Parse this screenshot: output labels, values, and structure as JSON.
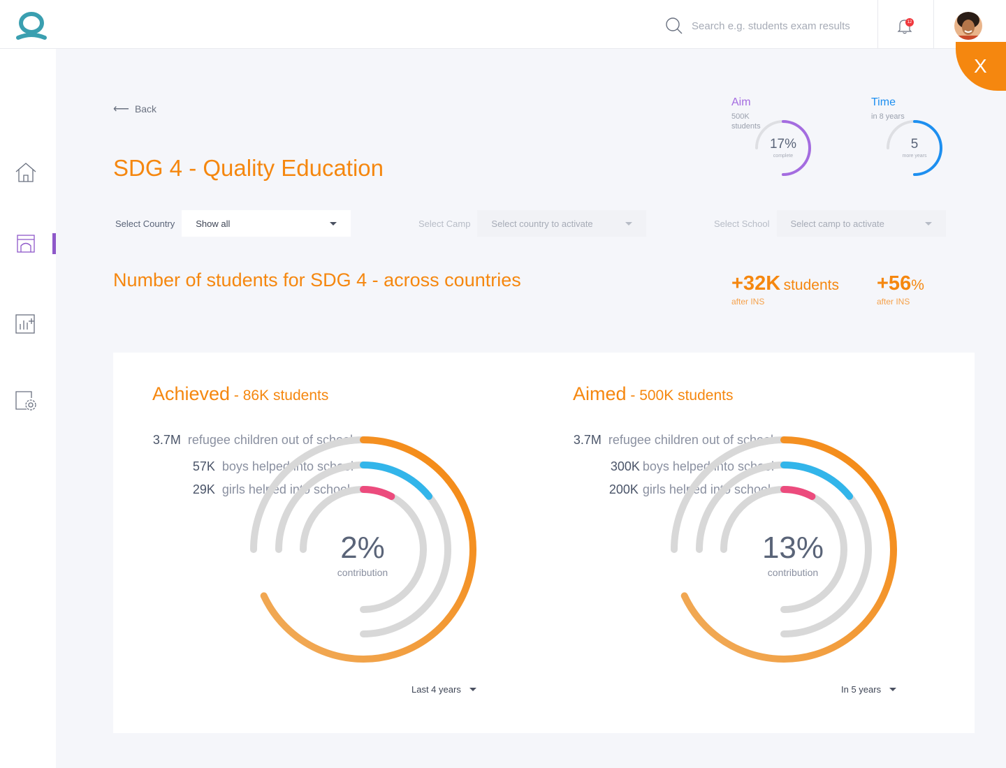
{
  "header": {
    "search_placeholder": "Search e.g. students exam results",
    "notification_count": "12"
  },
  "nav": {
    "back_label": "Back",
    "close_label": "X"
  },
  "page": {
    "title": "SDG 4 - Quality Education"
  },
  "aim": {
    "title": "Aim",
    "sub1": "500K",
    "sub2": "students",
    "value": "17%",
    "label": "complete",
    "fraction": 0.17
  },
  "time": {
    "title": "Time",
    "sub1": "in 8 years",
    "value": "5",
    "label": "more years",
    "fraction": 0.375
  },
  "filters": {
    "country_label": "Select Country",
    "country_value": "Show all",
    "camp_label": "Select  Camp",
    "camp_value": "Select country to activate",
    "school_label": "Select  School",
    "school_value": "Select camp to activate"
  },
  "section": {
    "title": "Number of students for SDG 4 - across countries",
    "stat1_value": "+32K",
    "stat1_unit": "students",
    "stat1_sub": "after INS",
    "stat2_value": "+56",
    "stat2_unit": "%",
    "stat2_sub": "after INS"
  },
  "achieved": {
    "title": "Achieved",
    "title_sep": " - ",
    "title_sub": "86K students",
    "rows": [
      {
        "value": "3.7M",
        "text": "refugee children out of school"
      },
      {
        "value": "57K",
        "text": "boys helped into school"
      },
      {
        "value": "29K",
        "text": "girls helped into school"
      }
    ],
    "pct": "2%",
    "pct_label": "contribution",
    "period": "Last 4 years"
  },
  "aimed": {
    "title": "Aimed",
    "title_sep": " - ",
    "title_sub": "500K students",
    "rows": [
      {
        "value": "3.7M",
        "text": "refugee children out of school"
      },
      {
        "value": "300K",
        "text": "boys helped into school"
      },
      {
        "value": "200K",
        "text": "girls helped into school"
      }
    ],
    "pct": "13%",
    "pct_label": "contribution",
    "period": "In 5 years"
  },
  "colors": {
    "orange": "#f5870f",
    "orange_light": "#f0ac5c",
    "blue": "#32b5ea",
    "pink": "#ec4b7d",
    "purple": "#a46ce0",
    "time_blue": "#1d8ff0",
    "track": "#d8d8d8"
  }
}
